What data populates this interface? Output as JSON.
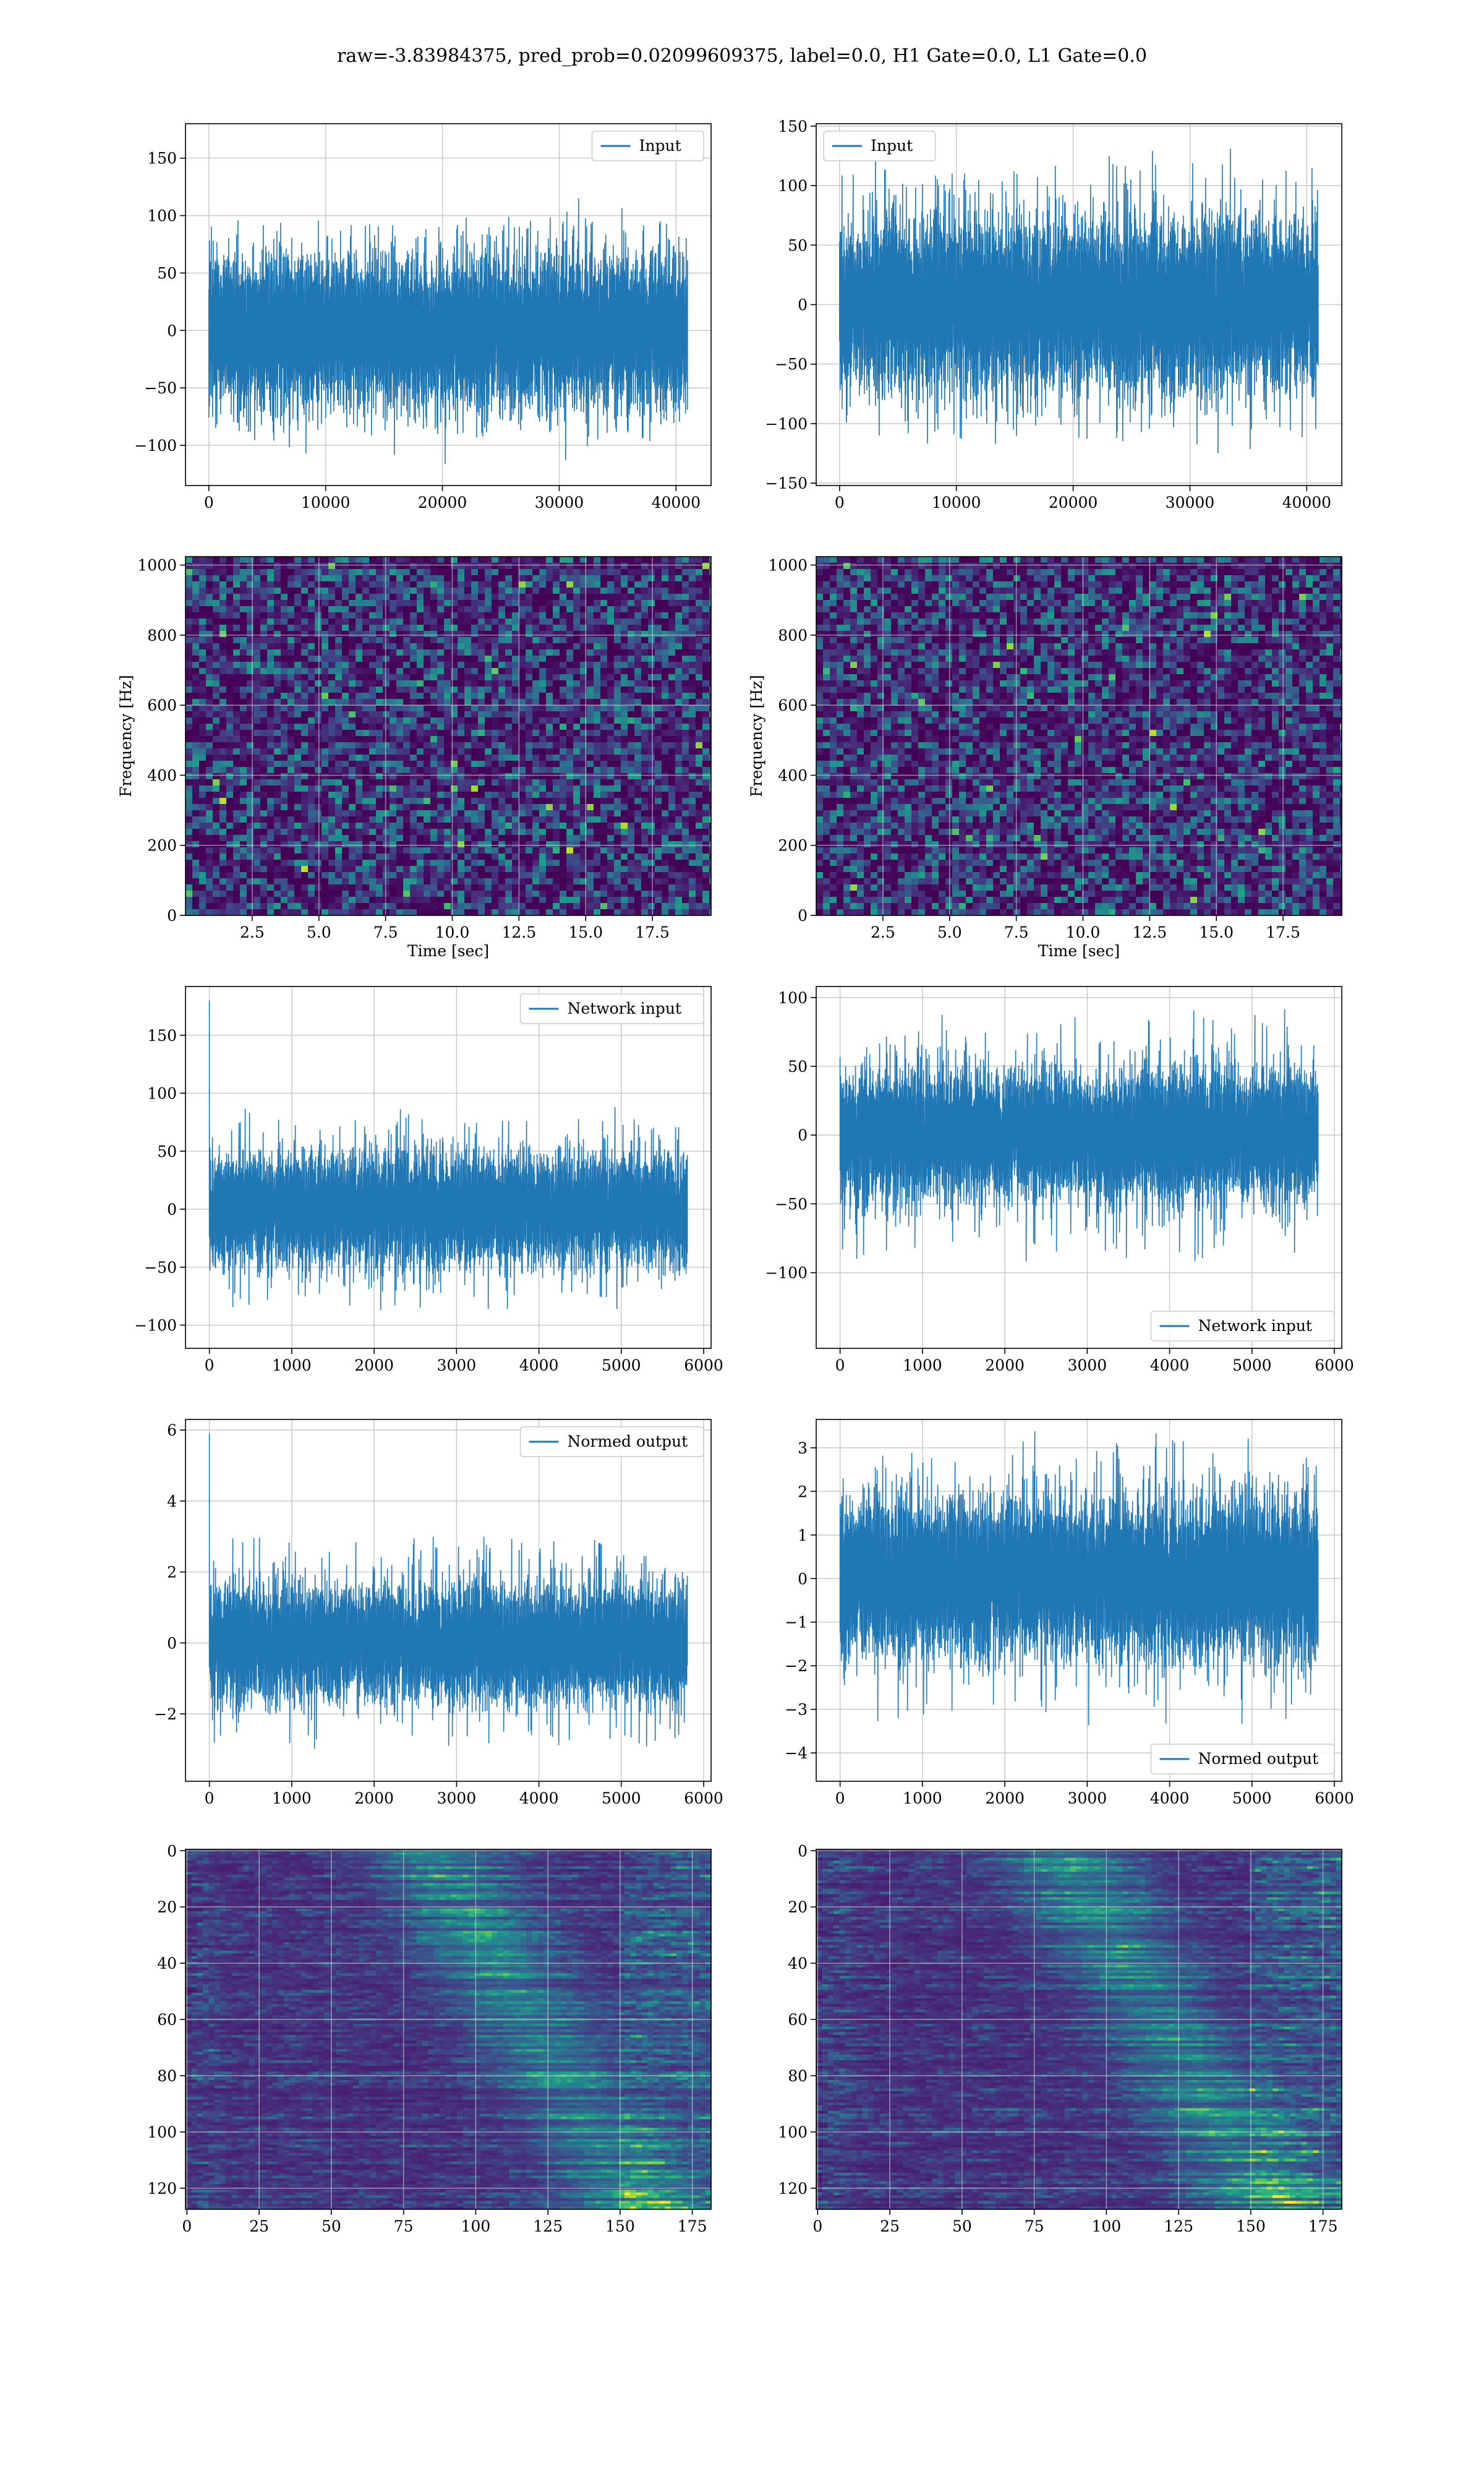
{
  "figure": {
    "suptitle": "raw=-3.83984375, pred_prob=0.02099609375, label=0.0, H1 Gate=0.0, L1 Gate=0.0"
  },
  "colors": {
    "line": "#1f77b4",
    "grid": "#cccccc",
    "viridis": [
      "#440154",
      "#482878",
      "#3e4a89",
      "#31688e",
      "#26828e",
      "#1f9e89",
      "#35b779",
      "#6ece58",
      "#b5de2b",
      "#fde725"
    ]
  },
  "chart_data": [
    {
      "id": "ts-input-left",
      "type": "line",
      "series": [
        {
          "name": "Input",
          "n": 40960,
          "amp": 30,
          "spike": 3.2
        }
      ],
      "xlim": [
        -2000,
        43000
      ],
      "ylim": [
        -135,
        180
      ],
      "xticks": [
        0,
        10000,
        20000,
        30000,
        40000
      ],
      "yticks": [
        -100,
        -50,
        0,
        50,
        100,
        150
      ],
      "legend": "top-right",
      "grid": true
    },
    {
      "id": "ts-input-right",
      "type": "line",
      "series": [
        {
          "name": "Input",
          "n": 40960,
          "amp": 33,
          "spike": 3.6
        }
      ],
      "xlim": [
        -2000,
        43000
      ],
      "ylim": [
        -152,
        152
      ],
      "xticks": [
        0,
        10000,
        20000,
        30000,
        40000
      ],
      "yticks": [
        -150,
        -100,
        -50,
        0,
        50,
        100,
        150
      ],
      "legend": "top-left",
      "grid": true
    },
    {
      "id": "spec-left",
      "type": "heatmap",
      "xlim": [
        0,
        19.7
      ],
      "ylim": [
        0,
        1024
      ],
      "xticks": [
        2.5,
        5.0,
        7.5,
        10.0,
        12.5,
        15.0,
        17.5
      ],
      "yticks": [
        0,
        200,
        400,
        600,
        800,
        1000
      ],
      "xlabel": "Time [sec]",
      "ylabel": "Frequency [Hz]",
      "grid": true
    },
    {
      "id": "spec-right",
      "type": "heatmap",
      "xlim": [
        0,
        19.7
      ],
      "ylim": [
        0,
        1024
      ],
      "xticks": [
        2.5,
        5.0,
        7.5,
        10.0,
        12.5,
        15.0,
        17.5
      ],
      "yticks": [
        0,
        200,
        400,
        600,
        800,
        1000
      ],
      "xlabel": "Time [sec]",
      "ylabel": "Frequency [Hz]",
      "grid": true
    },
    {
      "id": "net-input-left",
      "type": "line",
      "series": [
        {
          "name": "Network input",
          "n": 5800,
          "amp": 22,
          "spike": 4.0,
          "startSpike": 180
        }
      ],
      "xlim": [
        -290,
        6090
      ],
      "ylim": [
        -120,
        192
      ],
      "xticks": [
        0,
        1000,
        2000,
        3000,
        4000,
        5000,
        6000
      ],
      "yticks": [
        -100,
        -50,
        0,
        50,
        100,
        150
      ],
      "legend": "top-right",
      "grid": true
    },
    {
      "id": "net-input-right",
      "type": "line",
      "series": [
        {
          "name": "Network input",
          "n": 5800,
          "amp": 22,
          "spike": 4.2
        }
      ],
      "xlim": [
        -290,
        6090
      ],
      "ylim": [
        -155,
        108
      ],
      "xticks": [
        0,
        1000,
        2000,
        3000,
        4000,
        5000,
        6000
      ],
      "yticks": [
        -100,
        -50,
        0,
        50,
        100
      ],
      "legend": "bottom-right",
      "grid": true
    },
    {
      "id": "normed-left",
      "type": "line",
      "series": [
        {
          "name": "Normed output",
          "n": 5800,
          "amp": 0.75,
          "spike": 4.0,
          "startSpike": 5.9
        }
      ],
      "xlim": [
        -290,
        6090
      ],
      "ylim": [
        -3.9,
        6.3
      ],
      "xticks": [
        0,
        1000,
        2000,
        3000,
        4000,
        5000,
        6000
      ],
      "yticks": [
        -2,
        0,
        2,
        4,
        6
      ],
      "legend": "top-right",
      "grid": true
    },
    {
      "id": "normed-right",
      "type": "line",
      "series": [
        {
          "name": "Normed output",
          "n": 5800,
          "amp": 0.85,
          "spike": 4.0
        }
      ],
      "xlim": [
        -290,
        6090
      ],
      "ylim": [
        -4.65,
        3.65
      ],
      "xticks": [
        0,
        1000,
        2000,
        3000,
        4000,
        5000,
        6000
      ],
      "yticks": [
        -4,
        -3,
        -2,
        -1,
        0,
        1,
        2,
        3
      ],
      "legend": "bottom-right",
      "grid": true
    },
    {
      "id": "feat-left",
      "type": "heatmap",
      "xlim": [
        -0.5,
        181.5
      ],
      "ylim": [
        127.5,
        -0.5
      ],
      "xticks": [
        0,
        25,
        50,
        75,
        100,
        125,
        150,
        175
      ],
      "yticks": [
        0,
        20,
        40,
        60,
        80,
        100,
        120
      ],
      "grid": true
    },
    {
      "id": "feat-right",
      "type": "heatmap",
      "xlim": [
        -0.5,
        181.5
      ],
      "ylim": [
        127.5,
        -0.5
      ],
      "xticks": [
        0,
        25,
        50,
        75,
        100,
        125,
        150,
        175
      ],
      "yticks": [
        0,
        20,
        40,
        60,
        80,
        100,
        120
      ],
      "grid": true
    }
  ]
}
